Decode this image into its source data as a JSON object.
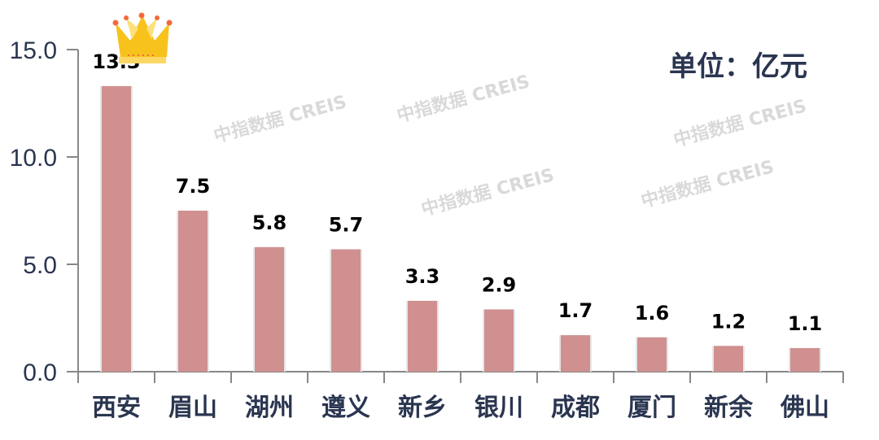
{
  "chart_data": {
    "type": "bar",
    "title": "",
    "xlabel": "",
    "ylabel": "",
    "unit_label": "单位：亿元",
    "categories": [
      "西安",
      "眉山",
      "湖州",
      "遵义",
      "新乡",
      "银川",
      "成都",
      "厦门",
      "新余",
      "佛山"
    ],
    "values": [
      13.3,
      7.5,
      5.8,
      5.7,
      3.3,
      2.9,
      1.7,
      1.6,
      1.2,
      1.1
    ],
    "value_labels": [
      "13.3",
      "7.5",
      "5.8",
      "5.7",
      "3.3",
      "2.9",
      "1.7",
      "1.6",
      "1.2",
      "1.1"
    ],
    "ylim": [
      0,
      15
    ],
    "yticks": [
      "0.0",
      "5.0",
      "10.0",
      "15.0"
    ],
    "ytick_values": [
      0,
      5,
      10,
      15
    ],
    "grid": false,
    "bar_color": "#d09090",
    "text_color": "#2a3550",
    "highlight_icon": "crown-icon",
    "watermark": "中指数据 CREIS"
  }
}
